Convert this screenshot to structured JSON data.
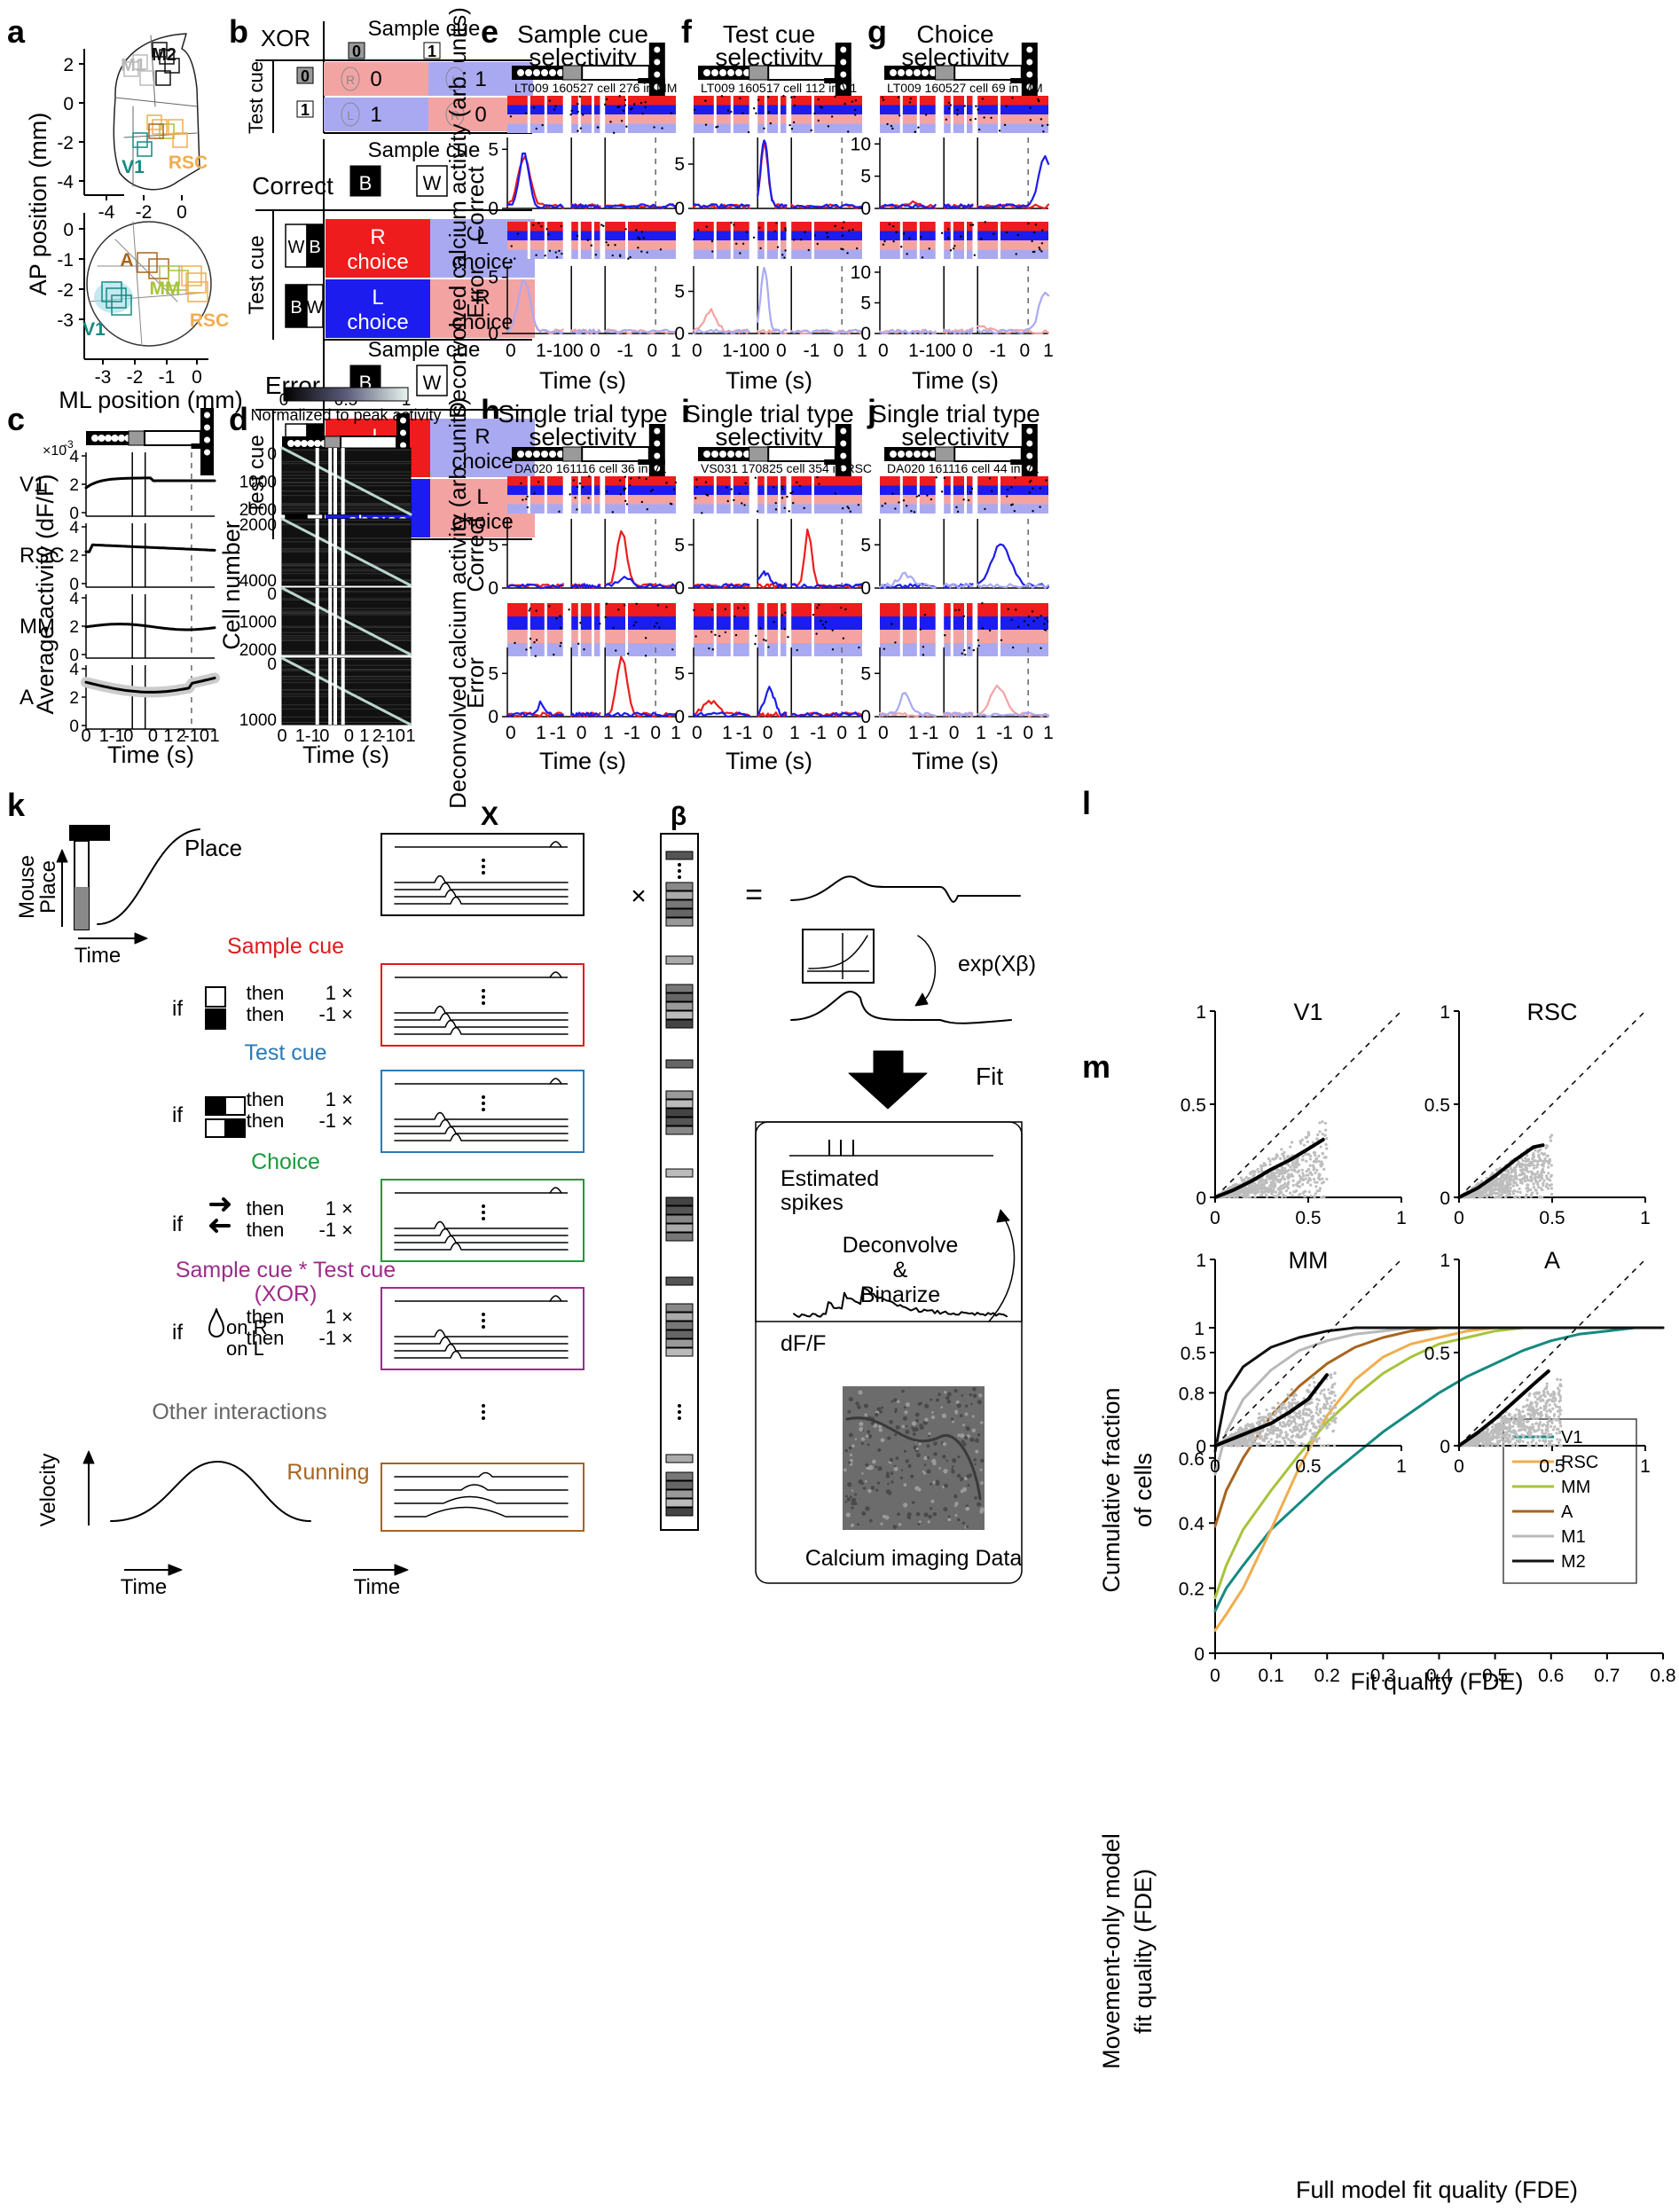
{
  "panel_labels": [
    "a",
    "b",
    "c",
    "d",
    "e",
    "f",
    "g",
    "h",
    "i",
    "j",
    "k",
    "l",
    "m"
  ],
  "panel_a": {
    "ylabel": "AP position (mm)",
    "xlabel": "ML position (mm)",
    "top_yticks": [
      "2",
      "0",
      "-2",
      "-4"
    ],
    "top_xticks": [
      "-4",
      "-2",
      "0"
    ],
    "bottom_yticks": [
      "0",
      "-1",
      "-2",
      "-3"
    ],
    "bottom_xticks": [
      "-3",
      "-2",
      "-1",
      "0"
    ],
    "top_regions": [
      {
        "name": "M2",
        "color": "#111111"
      },
      {
        "name": "M1",
        "color": "#b9b9b9"
      },
      {
        "name": "V1",
        "color": "#138a80"
      },
      {
        "name": "RSC",
        "color": "#f0ad4e"
      }
    ],
    "bottom_regions": [
      {
        "name": "A",
        "color": "#a8641e"
      },
      {
        "name": "MM",
        "color": "#a7c33b"
      },
      {
        "name": "V1",
        "color": "#138a80"
      },
      {
        "name": "RSC",
        "color": "#f0ad4e"
      }
    ]
  },
  "panel_b": {
    "xor": {
      "title": "XOR",
      "col_header": "Sample cue",
      "row_header": "Test cue",
      "cols": [
        "0",
        "1"
      ],
      "rows": [
        "0",
        "1"
      ],
      "cells": [
        [
          "0",
          "1"
        ],
        [
          "1",
          "0"
        ]
      ],
      "cell_letters": [
        [
          "R",
          "L"
        ],
        [
          "L",
          "R"
        ]
      ]
    },
    "correct": {
      "title": "Correct",
      "col_header": "Sample cue",
      "row_header": "Test cue",
      "cols": [
        "B",
        "W"
      ],
      "rows": [
        [
          "W",
          "B"
        ],
        [
          "B",
          "W"
        ]
      ],
      "cells": [
        [
          "R",
          "choice",
          "L",
          "choice"
        ],
        [
          "L",
          "choice",
          "R",
          "choice"
        ]
      ]
    },
    "error": {
      "title": "Error",
      "col_header": "Sample cue",
      "row_header": "Test cue",
      "cols": [
        "B",
        "W"
      ],
      "rows": [
        [
          "W",
          "B"
        ],
        [
          "B",
          "W"
        ]
      ],
      "cells": [
        [
          "L",
          "choice",
          "R",
          "choice"
        ],
        [
          "R",
          "choice",
          "L",
          "choice"
        ]
      ]
    }
  },
  "colors": {
    "red": "#ee1c1c",
    "blue": "#1c1cee",
    "light_red": "#f4a3a3",
    "light_blue": "#a9a9f2",
    "teal": "#138a80",
    "orange": "#f0ad4e",
    "lime": "#a7c33b",
    "brown": "#a8641e",
    "grey": "#b9b9b9",
    "black": "#111111"
  },
  "panel_c": {
    "ylabel": "Average activity (dF/F)",
    "xlabel": "Time (s)",
    "exponent": "×10",
    "exponent_power": "-3",
    "xticks": [
      "0",
      "1",
      "-1",
      "0",
      "0",
      "1",
      "2",
      "-1",
      "0",
      "1"
    ],
    "rows": [
      {
        "name": "V1",
        "yticks": [
          "4",
          "2",
          "0"
        ]
      },
      {
        "name": "RSC",
        "yticks": [
          "4",
          "2",
          "0"
        ]
      },
      {
        "name": "MM",
        "yticks": [
          "4",
          "2",
          "0"
        ]
      },
      {
        "name": "A",
        "yticks": [
          "4",
          "2",
          "0"
        ]
      }
    ]
  },
  "panel_d": {
    "colorbar_label": "Normalized to peak activity",
    "colorbar_ticks": [
      "0",
      "0.5",
      "1"
    ],
    "ylabel": "Cell number",
    "xlabel": "Time (s)",
    "xticks": [
      "0",
      "1",
      "-1",
      "0",
      "0",
      "1",
      "2",
      "-1",
      "0",
      "1"
    ],
    "blocks": [
      {
        "yticks": [
          "0",
          "1000",
          "2000"
        ]
      },
      {
        "yticks": [
          "2000",
          "4000"
        ]
      },
      {
        "yticks": [
          "0",
          "1000",
          "2000"
        ]
      },
      {
        "yticks": [
          "0",
          "1000"
        ]
      }
    ]
  },
  "panel_efg": {
    "ylabel": "Deconvolved calcium activity (arb. units)",
    "row_labels": [
      "Correct",
      "Error"
    ],
    "xlabel": "Time (s)",
    "xticks": [
      "0",
      "1",
      "-1",
      "0",
      "0",
      "0",
      "-1",
      "0",
      "1"
    ],
    "panels": [
      {
        "title1": "Sample cue",
        "title2": "selectivity",
        "cell": "LT009 160527 cell 276 in MM",
        "yticks": [
          "5",
          "0"
        ]
      },
      {
        "title1": "Test cue",
        "title2": "selectivity",
        "cell": "LT009 160517 cell 112 in V1",
        "yticks": [
          "5",
          "0"
        ]
      },
      {
        "title1": "Choice",
        "title2": "selectivity",
        "cell": "LT009 160527 cell 69 in MM",
        "yticks": [
          "10",
          "5",
          "0"
        ]
      }
    ]
  },
  "panel_hij": {
    "ylabel": "Deconvolved calcium activity (arb. units)",
    "row_labels": [
      "Correct",
      "Error"
    ],
    "xlabel": "Time (s)",
    "xticks": [
      "0",
      "1",
      "-1",
      "0",
      "1",
      "-1",
      "0",
      "1"
    ],
    "panels": [
      {
        "title1": "Single trial type",
        "title2": "selectivity",
        "cell": "DA020 161116 cell 36 in V1",
        "yticks": [
          "5",
          "0"
        ]
      },
      {
        "title1": "Single trial type",
        "title2": "selectivity",
        "cell": "VS031 170825 cell 354 in RSC",
        "yticks": [
          "5",
          "0"
        ]
      },
      {
        "title1": "Single trial type",
        "title2": "selectivity",
        "cell": "DA020 161116 cell 44 in V1",
        "yticks": [
          "5",
          "0"
        ]
      }
    ]
  },
  "panel_k": {
    "x_header": "X",
    "beta_header": "β",
    "mouse_place": [
      "Mouse",
      "Place"
    ],
    "time": "Time",
    "place": "Place",
    "velocity": "Velocity",
    "rows": [
      {
        "label": "Sample cue",
        "color": "#e0191b"
      },
      {
        "label": "Test cue",
        "color": "#2a7ab8"
      },
      {
        "label": "Choice",
        "color": "#1a9b3c"
      },
      {
        "label": "Sample cue * Test cue",
        "label2": "(XOR)",
        "color": "#9c2c8a"
      }
    ],
    "if": "if",
    "then": "then",
    "pos": "1 ×",
    "neg": "-1 ×",
    "on_r": "on R",
    "on_l": "on L",
    "other": "Other interactions",
    "running": "Running",
    "times": "×",
    "equals": "=",
    "exp": "exp(Xβ)",
    "fit": "Fit",
    "spikes": [
      "Estimated",
      "spikes"
    ],
    "deconvolve": [
      "Deconvolve",
      "&",
      "Binarize"
    ],
    "dff": "dF/F",
    "calcium": "Calcium imaging Data"
  },
  "chart_data": [
    {
      "type": "line",
      "title": "",
      "xlabel": "Fit quality (FDE)",
      "ylabel": "Cumulative fraction of cells",
      "xlim": [
        0,
        0.8
      ],
      "ylim": [
        0,
        1
      ],
      "xticks": [
        "0",
        "0.1",
        "0.2",
        "0.3",
        "0.4",
        "0.5",
        "0.6",
        "0.7",
        "0.8"
      ],
      "yticks": [
        "0",
        "0.2",
        "0.4",
        "0.6",
        "0.8",
        "1"
      ],
      "legend_position": "right",
      "x": [
        0,
        0.02,
        0.05,
        0.1,
        0.15,
        0.2,
        0.25,
        0.3,
        0.35,
        0.4,
        0.45,
        0.5,
        0.55,
        0.6,
        0.65,
        0.7,
        0.75,
        0.8
      ],
      "series": [
        {
          "name": "V1",
          "color": "#138a80",
          "values": [
            0.13,
            0.2,
            0.27,
            0.38,
            0.46,
            0.54,
            0.61,
            0.68,
            0.74,
            0.8,
            0.85,
            0.89,
            0.93,
            0.96,
            0.98,
            0.99,
            1.0,
            1.0
          ]
        },
        {
          "name": "RSC",
          "color": "#f0ad4e",
          "values": [
            0.07,
            0.12,
            0.2,
            0.38,
            0.57,
            0.73,
            0.84,
            0.91,
            0.95,
            0.97,
            0.99,
            1.0,
            1.0,
            1.0,
            1.0,
            1.0,
            1.0,
            1.0
          ]
        },
        {
          "name": "MM",
          "color": "#a7c33b",
          "values": [
            0.17,
            0.27,
            0.38,
            0.5,
            0.61,
            0.71,
            0.79,
            0.86,
            0.91,
            0.95,
            0.97,
            0.99,
            1.0,
            1.0,
            1.0,
            1.0,
            1.0,
            1.0
          ]
        },
        {
          "name": "A",
          "color": "#a8641e",
          "values": [
            0.39,
            0.5,
            0.6,
            0.73,
            0.82,
            0.89,
            0.94,
            0.97,
            0.99,
            1.0,
            1.0,
            1.0,
            1.0,
            1.0,
            1.0,
            1.0,
            1.0,
            1.0
          ]
        },
        {
          "name": "M1",
          "color": "#b9b9b9",
          "values": [
            0.55,
            0.68,
            0.78,
            0.87,
            0.93,
            0.96,
            0.98,
            0.99,
            1.0,
            1.0,
            1.0,
            1.0,
            1.0,
            1.0,
            1.0,
            1.0,
            1.0,
            1.0
          ]
        },
        {
          "name": "M2",
          "color": "#111111",
          "values": [
            0.62,
            0.8,
            0.88,
            0.94,
            0.97,
            0.99,
            1.0,
            1.0,
            1.0,
            1.0,
            1.0,
            1.0,
            1.0,
            1.0,
            1.0,
            1.0,
            1.0,
            1.0
          ]
        }
      ]
    },
    {
      "type": "scatter",
      "xlabel": "Full model fit quality (FDE)",
      "ylabel": "Movement-only model fit quality (FDE)",
      "xlim": [
        0,
        1
      ],
      "ylim": [
        0,
        1
      ],
      "xticks": [
        "0",
        "0.5",
        "1"
      ],
      "yticks": [
        "0",
        "0.5",
        "1"
      ],
      "subplots": [
        {
          "title": "V1",
          "trend_x": [
            0,
            0.1,
            0.2,
            0.3,
            0.4,
            0.5,
            0.58
          ],
          "trend_y": [
            0.0,
            0.04,
            0.09,
            0.15,
            0.2,
            0.26,
            0.31
          ],
          "spread": [
            0.6,
            0.6
          ]
        },
        {
          "title": "RSC",
          "trend_x": [
            0,
            0.1,
            0.2,
            0.3,
            0.4,
            0.45
          ],
          "trend_y": [
            0.0,
            0.05,
            0.12,
            0.2,
            0.27,
            0.28
          ],
          "spread": [
            0.5,
            0.5
          ]
        },
        {
          "title": "MM",
          "trend_x": [
            0,
            0.1,
            0.2,
            0.3,
            0.4,
            0.5,
            0.6
          ],
          "trend_y": [
            0.0,
            0.04,
            0.08,
            0.12,
            0.18,
            0.25,
            0.38
          ],
          "spread": [
            0.65,
            0.6
          ]
        },
        {
          "title": "A",
          "trend_x": [
            0,
            0.1,
            0.2,
            0.3,
            0.4,
            0.48
          ],
          "trend_y": [
            0.0,
            0.07,
            0.15,
            0.24,
            0.33,
            0.4
          ],
          "spread": [
            0.55,
            0.55
          ]
        }
      ]
    }
  ]
}
